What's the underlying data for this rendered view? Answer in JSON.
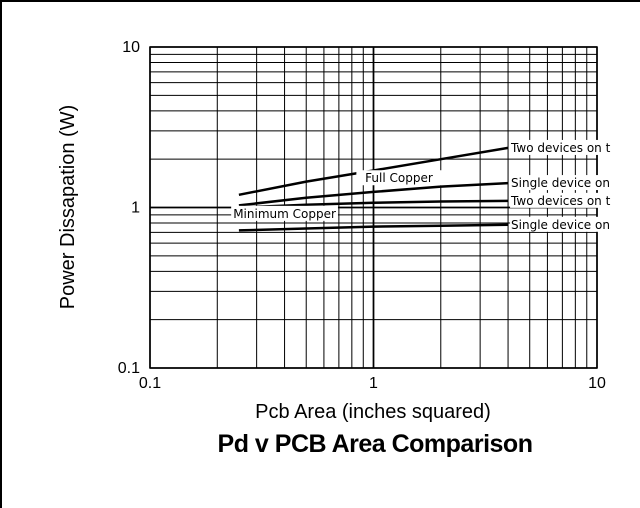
{
  "chart_data": {
    "type": "line",
    "title": "Pd v PCB Area Comparison",
    "xlabel": "Pcb Area (inches squared)",
    "ylabel": "Power Dissapation (W)",
    "x_scale": "log",
    "y_scale": "log",
    "xlim": [
      0.1,
      10
    ],
    "ylim": [
      0.1,
      10
    ],
    "grid": true,
    "x_ticks": [
      "0.1",
      "1",
      "10"
    ],
    "y_ticks": [
      "10",
      "1",
      "0.1"
    ],
    "series": [
      {
        "name": "Two devices on t",
        "x": [
          0.25,
          0.5,
          1,
          2,
          4
        ],
        "y": [
          1.2,
          1.45,
          1.7,
          2.0,
          2.35
        ]
      },
      {
        "name": "Single device on",
        "x": [
          0.25,
          0.5,
          1,
          2,
          4
        ],
        "y": [
          1.03,
          1.15,
          1.25,
          1.35,
          1.42
        ]
      },
      {
        "name": "Two devices on t",
        "x": [
          0.25,
          0.5,
          1,
          2,
          4
        ],
        "y": [
          1.0,
          1.04,
          1.07,
          1.09,
          1.1
        ]
      },
      {
        "name": "Single device on",
        "x": [
          0.25,
          0.5,
          1,
          2,
          4
        ],
        "y": [
          0.72,
          0.74,
          0.76,
          0.77,
          0.78
        ]
      }
    ],
    "annotations": [
      {
        "text": "Full Copper",
        "x": 1.3,
        "y": 1.5
      },
      {
        "text": "Minimum Copper",
        "x": 0.4,
        "y": 0.9
      }
    ]
  }
}
